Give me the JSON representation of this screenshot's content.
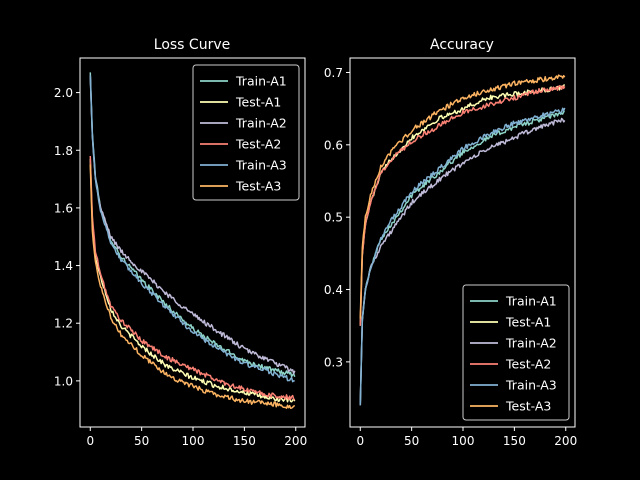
{
  "chart_data": [
    {
      "type": "line",
      "title": "Loss Curve",
      "xlabel": "",
      "ylabel": "",
      "xlim": [
        -10,
        209
      ],
      "ylim": [
        0.84,
        2.12
      ],
      "xticks": [
        0,
        50,
        100,
        150,
        200
      ],
      "yticks": [
        1.0,
        1.2,
        1.4,
        1.6,
        1.8,
        2.0
      ],
      "legend": "top-right",
      "grid": false,
      "series": [
        {
          "name": "Train-A1",
          "color": "#8dd3c7",
          "x": [
            0,
            2,
            5,
            10,
            20,
            30,
            50,
            75,
            100,
            125,
            150,
            175,
            199
          ],
          "y": [
            2.07,
            1.86,
            1.71,
            1.6,
            1.49,
            1.43,
            1.35,
            1.26,
            1.18,
            1.12,
            1.07,
            1.04,
            1.02
          ]
        },
        {
          "name": "Test-A1",
          "color": "#feffb3",
          "x": [
            0,
            2,
            5,
            10,
            20,
            30,
            50,
            75,
            100,
            125,
            150,
            175,
            199
          ],
          "y": [
            1.77,
            1.55,
            1.43,
            1.36,
            1.25,
            1.19,
            1.12,
            1.05,
            1.01,
            0.98,
            0.96,
            0.94,
            0.93
          ]
        },
        {
          "name": "Train-A2",
          "color": "#bfbbd9",
          "x": [
            0,
            2,
            5,
            10,
            20,
            30,
            50,
            75,
            100,
            125,
            150,
            175,
            199
          ],
          "y": [
            2.06,
            1.85,
            1.7,
            1.6,
            1.5,
            1.45,
            1.38,
            1.3,
            1.23,
            1.17,
            1.11,
            1.07,
            1.03
          ]
        },
        {
          "name": "Test-A2",
          "color": "#fa8174",
          "x": [
            0,
            2,
            5,
            10,
            20,
            30,
            50,
            75,
            100,
            125,
            150,
            175,
            199
          ],
          "y": [
            1.78,
            1.57,
            1.45,
            1.37,
            1.26,
            1.21,
            1.14,
            1.08,
            1.04,
            1.0,
            0.97,
            0.95,
            0.94
          ]
        },
        {
          "name": "Train-A3",
          "color": "#81b1d2",
          "x": [
            0,
            2,
            5,
            10,
            20,
            30,
            50,
            75,
            100,
            125,
            150,
            175,
            199
          ],
          "y": [
            2.06,
            1.85,
            1.7,
            1.59,
            1.48,
            1.42,
            1.34,
            1.25,
            1.17,
            1.11,
            1.06,
            1.03,
            1.0
          ]
        },
        {
          "name": "Test-A3",
          "color": "#fdb462",
          "x": [
            0,
            2,
            5,
            10,
            20,
            30,
            50,
            75,
            100,
            125,
            150,
            175,
            199
          ],
          "y": [
            1.75,
            1.52,
            1.41,
            1.33,
            1.22,
            1.16,
            1.09,
            1.02,
            0.98,
            0.95,
            0.93,
            0.92,
            0.91
          ]
        }
      ]
    },
    {
      "type": "line",
      "title": "Accuracy",
      "xlabel": "",
      "ylabel": "",
      "xlim": [
        -10,
        209
      ],
      "ylim": [
        0.21,
        0.72
      ],
      "xticks": [
        0,
        50,
        100,
        150,
        200
      ],
      "yticks": [
        0.3,
        0.4,
        0.5,
        0.6,
        0.7
      ],
      "legend": "bottom-right",
      "grid": false,
      "series": [
        {
          "name": "Train-A1",
          "color": "#8dd3c7",
          "x": [
            0,
            2,
            5,
            10,
            20,
            30,
            50,
            75,
            100,
            125,
            150,
            175,
            199
          ],
          "y": [
            0.24,
            0.36,
            0.4,
            0.43,
            0.47,
            0.49,
            0.53,
            0.56,
            0.59,
            0.61,
            0.625,
            0.635,
            0.645
          ]
        },
        {
          "name": "Test-A1",
          "color": "#feffb3",
          "x": [
            0,
            2,
            5,
            10,
            20,
            30,
            50,
            75,
            100,
            125,
            150,
            175,
            199
          ],
          "y": [
            0.35,
            0.45,
            0.49,
            0.52,
            0.56,
            0.58,
            0.61,
            0.635,
            0.65,
            0.665,
            0.67,
            0.675,
            0.68
          ]
        },
        {
          "name": "Train-A2",
          "color": "#bfbbd9",
          "x": [
            0,
            2,
            5,
            10,
            20,
            30,
            50,
            75,
            100,
            125,
            150,
            175,
            199
          ],
          "y": [
            0.24,
            0.36,
            0.4,
            0.43,
            0.46,
            0.48,
            0.52,
            0.55,
            0.575,
            0.595,
            0.61,
            0.625,
            0.635
          ]
        },
        {
          "name": "Test-A2",
          "color": "#fa8174",
          "x": [
            0,
            2,
            5,
            10,
            20,
            30,
            50,
            75,
            100,
            125,
            150,
            175,
            199
          ],
          "y": [
            0.35,
            0.45,
            0.49,
            0.52,
            0.56,
            0.58,
            0.605,
            0.625,
            0.645,
            0.655,
            0.665,
            0.675,
            0.68
          ]
        },
        {
          "name": "Train-A3",
          "color": "#81b1d2",
          "x": [
            0,
            2,
            5,
            10,
            20,
            30,
            50,
            75,
            100,
            125,
            150,
            175,
            199
          ],
          "y": [
            0.24,
            0.36,
            0.4,
            0.43,
            0.47,
            0.495,
            0.535,
            0.565,
            0.595,
            0.615,
            0.63,
            0.64,
            0.648
          ]
        },
        {
          "name": "Test-A3",
          "color": "#fdb462",
          "x": [
            0,
            2,
            5,
            10,
            20,
            30,
            50,
            75,
            100,
            125,
            150,
            175,
            199
          ],
          "y": [
            0.36,
            0.46,
            0.5,
            0.53,
            0.57,
            0.59,
            0.62,
            0.645,
            0.665,
            0.675,
            0.685,
            0.69,
            0.695
          ]
        }
      ]
    }
  ]
}
